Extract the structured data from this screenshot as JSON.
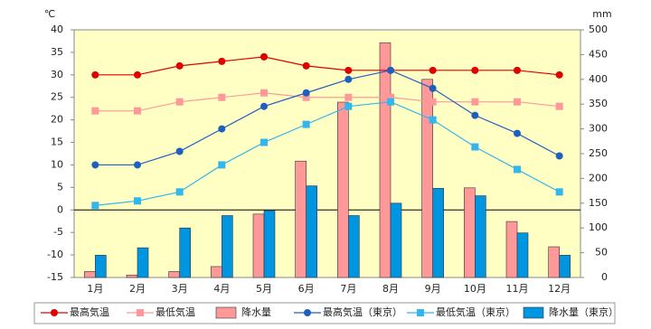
{
  "chart_data": {
    "type": "combo",
    "y_label": "℃",
    "y2_label": "mm",
    "categories": [
      "1月",
      "2月",
      "3月",
      "4月",
      "5月",
      "6月",
      "7月",
      "8月",
      "9月",
      "10月",
      "11月",
      "12月"
    ],
    "ylim": [
      -15,
      40
    ],
    "yticks": [
      -15,
      -10,
      -5,
      0,
      5,
      10,
      15,
      20,
      25,
      30,
      35,
      40
    ],
    "y2lim": [
      0,
      500
    ],
    "y2ticks": [
      0,
      50,
      100,
      150,
      200,
      250,
      300,
      350,
      400,
      450,
      500
    ],
    "series": [
      {
        "name": "最高気温",
        "type": "line",
        "marker": "circle",
        "color": "#e00000",
        "values": [
          30,
          30,
          32,
          33,
          34,
          32,
          31,
          31,
          31,
          31,
          31,
          30
        ]
      },
      {
        "name": "最低気温",
        "type": "line",
        "marker": "square",
        "color": "#ff9999",
        "values": [
          22,
          22,
          24,
          25,
          26,
          25,
          25,
          25,
          24,
          24,
          24,
          23
        ]
      },
      {
        "name": "降水量",
        "type": "bar",
        "axis": "y2",
        "color": "#ff9999",
        "values": [
          12,
          5,
          12,
          22,
          128,
          235,
          354,
          474,
          400,
          181,
          113,
          62
        ]
      },
      {
        "name": "最高気温（東京）",
        "type": "line",
        "marker": "circle",
        "color": "#1f5fbf",
        "values": [
          10,
          10,
          13,
          18,
          23,
          26,
          29,
          31,
          27,
          21,
          17,
          12
        ]
      },
      {
        "name": "最低気温（東京）",
        "type": "line",
        "marker": "square",
        "color": "#33b5ee",
        "values": [
          1,
          2,
          4,
          10,
          15,
          19,
          23,
          24,
          20,
          14,
          9,
          4
        ]
      },
      {
        "name": "降水量（東京）",
        "type": "bar",
        "axis": "y2",
        "color": "#0095e0",
        "values": [
          45,
          60,
          100,
          125,
          135,
          185,
          125,
          150,
          180,
          165,
          90,
          45
        ]
      }
    ]
  }
}
